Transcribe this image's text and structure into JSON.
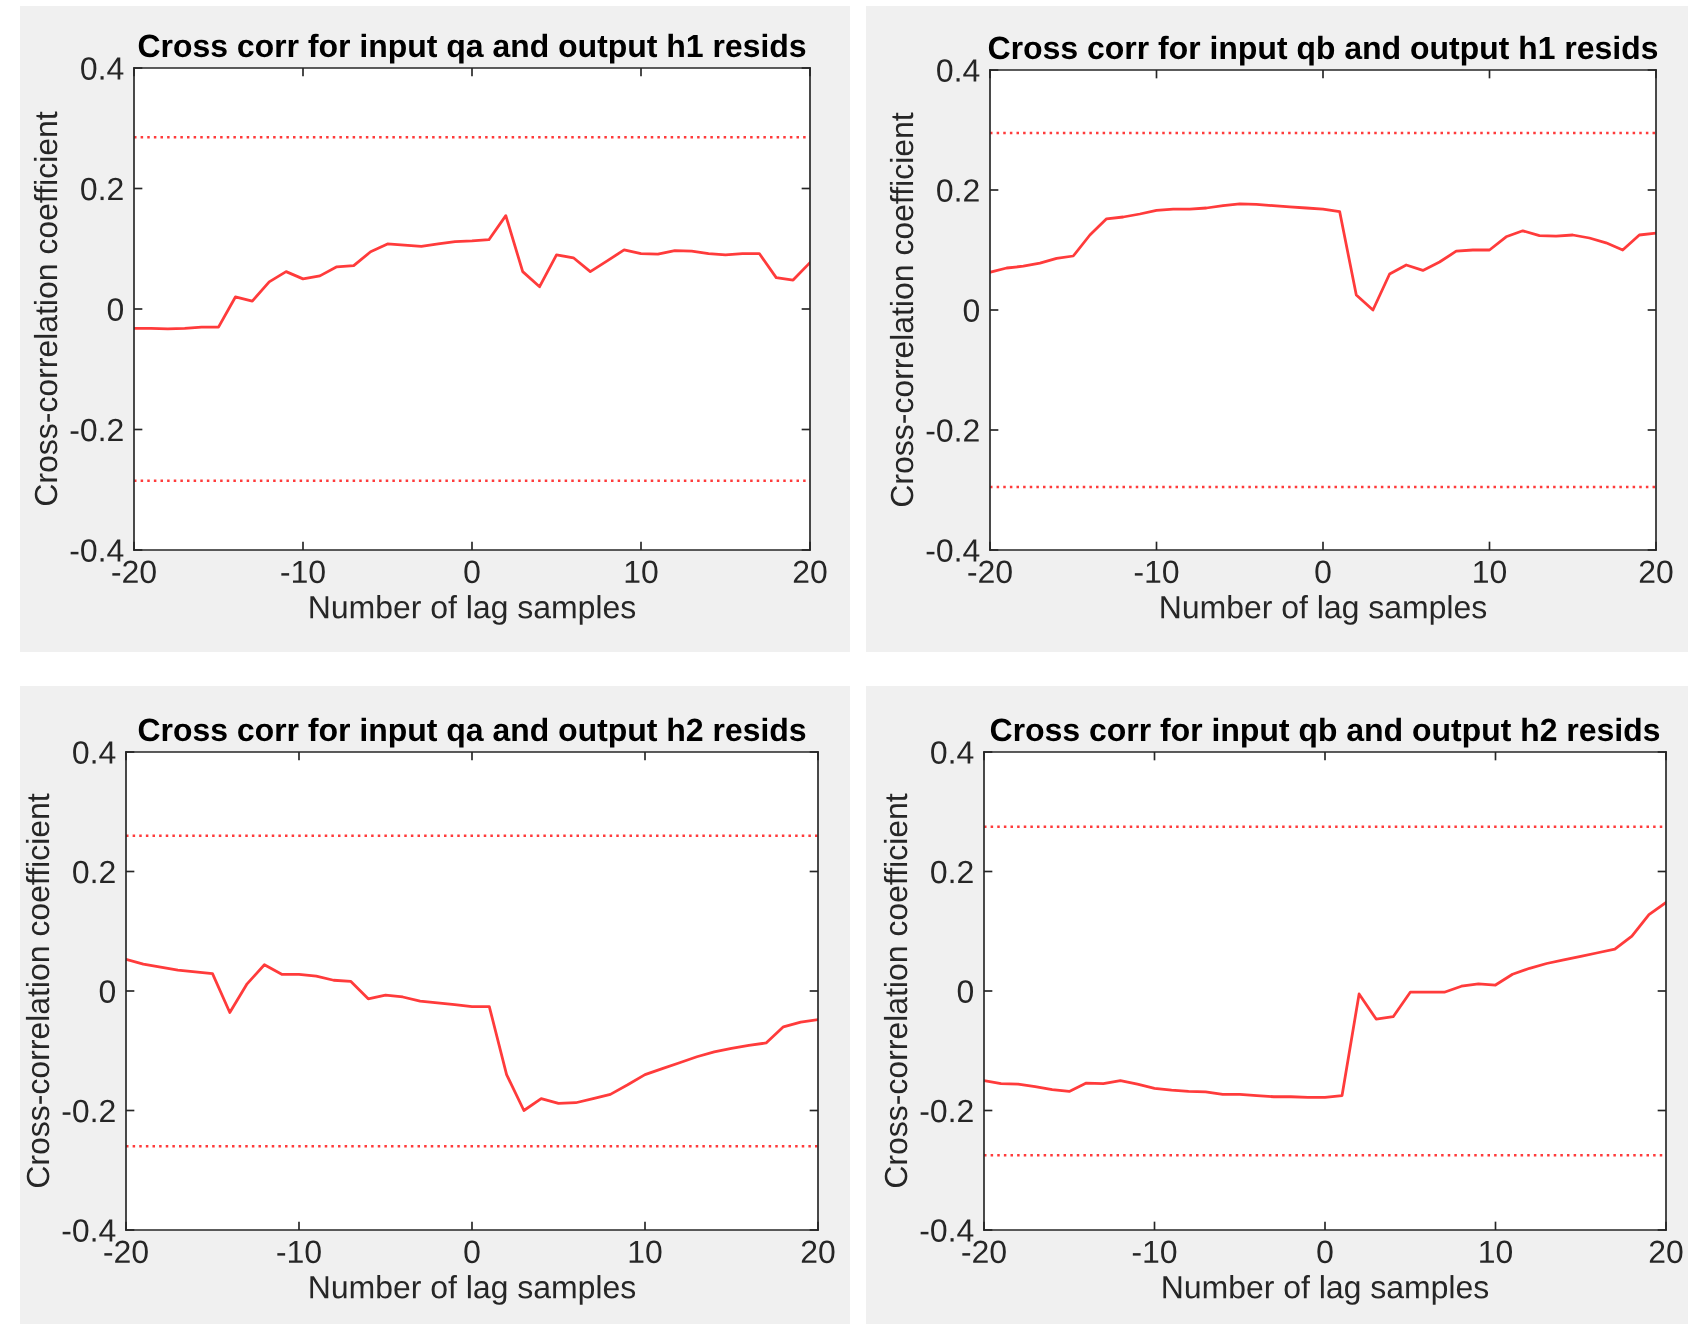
{
  "chart_data": [
    {
      "type": "line",
      "title": "Cross corr for input qa and output h1 resids",
      "xlabel": "Number of lag samples",
      "ylabel": "Cross-correlation coefficient",
      "xlim": [
        -20,
        20
      ],
      "xticks": [
        -20,
        -10,
        0,
        10,
        20
      ],
      "ylim": [
        -0.4,
        0.4
      ],
      "yticks": [
        -0.4,
        -0.2,
        0,
        0.2,
        0.4
      ],
      "line_style": "solid",
      "x": [
        -20,
        -19,
        -18,
        -17,
        -16,
        -15,
        -14,
        -13,
        -12,
        -11,
        -10,
        -9,
        -8,
        -7,
        -6,
        -5,
        -4,
        -3,
        -2,
        -1,
        0,
        1,
        2,
        3,
        4,
        5,
        6,
        7,
        8,
        9,
        10,
        11,
        12,
        13,
        14,
        15,
        16,
        17,
        18,
        19,
        20
      ],
      "series": [
        {
          "color": "#ff3b3b",
          "values": [
            -0.032,
            -0.032,
            -0.033,
            -0.032,
            -0.03,
            -0.03,
            0.02,
            0.013,
            0.045,
            0.062,
            0.05,
            0.055,
            0.07,
            0.072,
            0.095,
            0.108,
            0.106,
            0.104,
            0.108,
            0.112,
            0.113,
            0.115,
            0.155,
            0.062,
            0.037,
            0.09,
            0.085,
            0.062,
            0.08,
            0.098,
            0.092,
            0.091,
            0.097,
            0.096,
            0.092,
            0.09,
            0.092,
            0.092,
            0.052,
            0.048,
            0.077
          ]
        }
      ],
      "ref_lines": [
        {
          "axis": "y",
          "value": 0.285,
          "color": "#ff3b3b",
          "line_style": "dotted"
        },
        {
          "axis": "y",
          "value": -0.285,
          "color": "#ff3b3b",
          "line_style": "dotted"
        }
      ]
    },
    {
      "type": "line",
      "title": "Cross corr for input qb and output h1 resids",
      "xlabel": "Number of lag samples",
      "ylabel": "Cross-correlation coefficient",
      "xlim": [
        -20,
        20
      ],
      "xticks": [
        -20,
        -10,
        0,
        10,
        20
      ],
      "ylim": [
        -0.4,
        0.4
      ],
      "yticks": [
        -0.4,
        -0.2,
        0,
        0.2,
        0.4
      ],
      "line_style": "solid",
      "x": [
        -20,
        -19,
        -18,
        -17,
        -16,
        -15,
        -14,
        -13,
        -12,
        -11,
        -10,
        -9,
        -8,
        -7,
        -6,
        -5,
        -4,
        -3,
        -2,
        -1,
        0,
        1,
        2,
        3,
        4,
        5,
        6,
        7,
        8,
        9,
        10,
        11,
        12,
        13,
        14,
        15,
        16,
        17,
        18,
        19,
        20
      ],
      "series": [
        {
          "color": "#ff3b3b",
          "values": [
            0.063,
            0.07,
            0.073,
            0.078,
            0.086,
            0.09,
            0.125,
            0.152,
            0.155,
            0.16,
            0.166,
            0.168,
            0.168,
            0.17,
            0.174,
            0.177,
            0.176,
            0.174,
            0.172,
            0.17,
            0.168,
            0.164,
            0.025,
            0.0,
            0.06,
            0.075,
            0.066,
            0.08,
            0.098,
            0.1,
            0.1,
            0.122,
            0.132,
            0.124,
            0.123,
            0.125,
            0.12,
            0.112,
            0.1,
            0.125,
            0.128
          ]
        }
      ],
      "ref_lines": [
        {
          "axis": "y",
          "value": 0.295,
          "color": "#ff3b3b",
          "line_style": "dotted"
        },
        {
          "axis": "y",
          "value": -0.295,
          "color": "#ff3b3b",
          "line_style": "dotted"
        }
      ]
    },
    {
      "type": "line",
      "title": "Cross corr for input qa and output h2 resids",
      "xlabel": "Number of lag samples",
      "ylabel": "Cross-correlation coefficient",
      "xlim": [
        -20,
        20
      ],
      "xticks": [
        -20,
        -10,
        0,
        10,
        20
      ],
      "ylim": [
        -0.4,
        0.4
      ],
      "yticks": [
        -0.4,
        -0.2,
        0,
        0.2,
        0.4
      ],
      "line_style": "solid",
      "x": [
        -20,
        -19,
        -18,
        -17,
        -16,
        -15,
        -14,
        -13,
        -12,
        -11,
        -10,
        -9,
        -8,
        -7,
        -6,
        -5,
        -4,
        -3,
        -2,
        -1,
        0,
        1,
        2,
        3,
        4,
        5,
        6,
        7,
        8,
        9,
        10,
        11,
        12,
        13,
        14,
        15,
        16,
        17,
        18,
        19,
        20
      ],
      "series": [
        {
          "color": "#ff3b3b",
          "values": [
            0.053,
            0.045,
            0.04,
            0.035,
            0.032,
            0.029,
            -0.036,
            0.012,
            0.044,
            0.028,
            0.028,
            0.025,
            0.018,
            0.016,
            -0.013,
            -0.007,
            -0.01,
            -0.017,
            -0.02,
            -0.023,
            -0.026,
            -0.026,
            -0.14,
            -0.2,
            -0.18,
            -0.188,
            -0.187,
            -0.18,
            -0.173,
            -0.157,
            -0.14,
            -0.13,
            -0.12,
            -0.11,
            -0.102,
            -0.096,
            -0.091,
            -0.087,
            -0.06,
            -0.052,
            -0.048
          ]
        }
      ],
      "ref_lines": [
        {
          "axis": "y",
          "value": 0.26,
          "color": "#ff3b3b",
          "line_style": "dotted"
        },
        {
          "axis": "y",
          "value": -0.26,
          "color": "#ff3b3b",
          "line_style": "dotted"
        }
      ]
    },
    {
      "type": "line",
      "title": "Cross corr for input qb and output h2 resids",
      "xlabel": "Number of lag samples",
      "ylabel": "Cross-correlation coefficient",
      "xlim": [
        -20,
        20
      ],
      "xticks": [
        -20,
        -10,
        0,
        10,
        20
      ],
      "ylim": [
        -0.4,
        0.4
      ],
      "yticks": [
        -0.4,
        -0.2,
        0,
        0.2,
        0.4
      ],
      "line_style": "solid",
      "x": [
        -20,
        -19,
        -18,
        -17,
        -16,
        -15,
        -14,
        -13,
        -12,
        -11,
        -10,
        -9,
        -8,
        -7,
        -6,
        -5,
        -4,
        -3,
        -2,
        -1,
        0,
        1,
        2,
        3,
        4,
        5,
        6,
        7,
        8,
        9,
        10,
        11,
        12,
        13,
        14,
        15,
        16,
        17,
        18,
        19,
        20
      ],
      "series": [
        {
          "color": "#ff3b3b",
          "values": [
            -0.15,
            -0.155,
            -0.156,
            -0.16,
            -0.165,
            -0.168,
            -0.154,
            -0.155,
            -0.15,
            -0.156,
            -0.163,
            -0.166,
            -0.168,
            -0.169,
            -0.173,
            -0.173,
            -0.175,
            -0.177,
            -0.177,
            -0.178,
            -0.178,
            -0.175,
            -0.005,
            -0.047,
            -0.043,
            -0.002,
            -0.002,
            -0.002,
            0.008,
            0.012,
            0.01,
            0.028,
            0.038,
            0.046,
            0.052,
            0.058,
            0.064,
            0.07,
            0.092,
            0.128,
            0.148
          ]
        }
      ],
      "ref_lines": [
        {
          "axis": "y",
          "value": 0.275,
          "color": "#ff3b3b",
          "line_style": "dotted"
        },
        {
          "axis": "y",
          "value": -0.275,
          "color": "#ff3b3b",
          "line_style": "dotted"
        }
      ]
    }
  ]
}
